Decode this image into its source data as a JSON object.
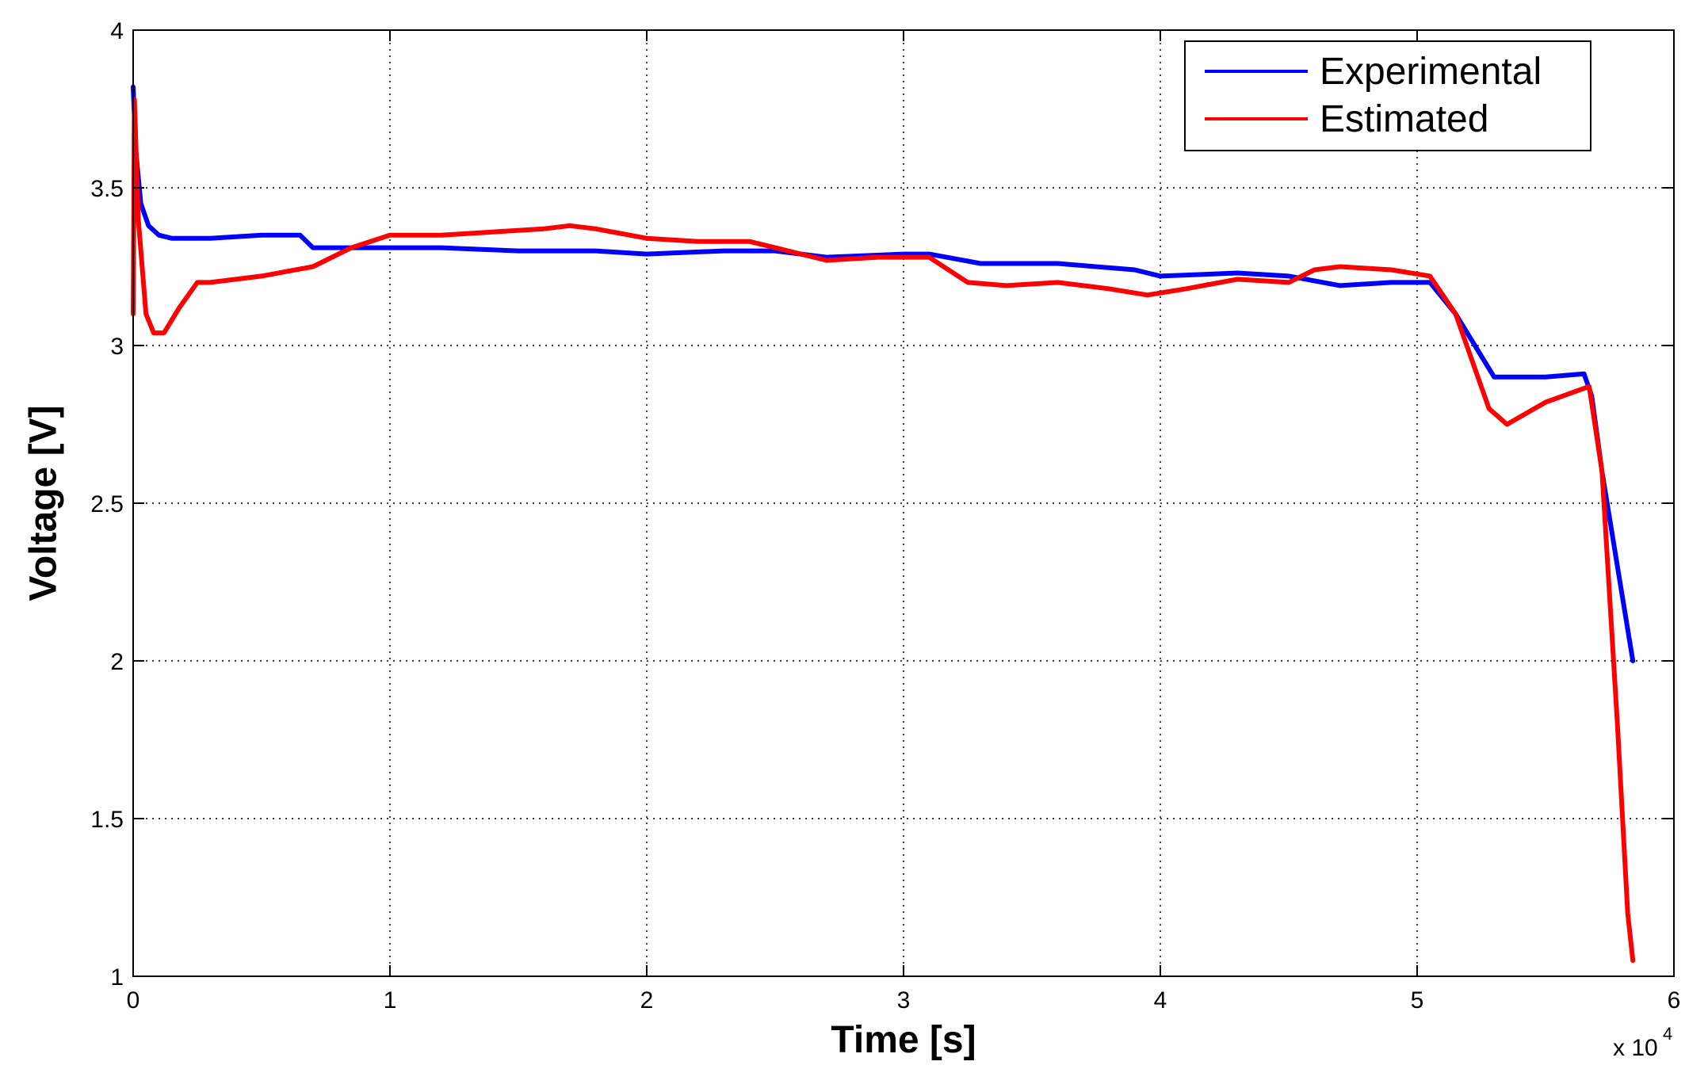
{
  "chart_data": {
    "type": "line",
    "xlabel": "Time [s]",
    "ylabel": "Voltage [V]",
    "x_exponent_label": "x 10",
    "x_exponent_power": "4",
    "xlim": [
      0,
      6
    ],
    "ylim": [
      1,
      4
    ],
    "xticks": [
      "0",
      "1",
      "2",
      "3",
      "4",
      "5",
      "6"
    ],
    "yticks": [
      "1",
      "1.5",
      "2",
      "2.5",
      "3",
      "3.5",
      "4"
    ],
    "grid": true,
    "legend_position": "top-right",
    "series": [
      {
        "name": "Experimental",
        "color": "#0000ff",
        "x": [
          0.0,
          0.01,
          0.03,
          0.06,
          0.1,
          0.15,
          0.2,
          0.3,
          0.5,
          0.65,
          0.7,
          1.0,
          1.2,
          1.5,
          1.8,
          2.0,
          2.3,
          2.5,
          2.7,
          3.0,
          3.1,
          3.3,
          3.6,
          3.9,
          4.0,
          4.3,
          4.5,
          4.7,
          4.9,
          5.0,
          5.05,
          5.15,
          5.3,
          5.5,
          5.65,
          5.68,
          5.72,
          5.78,
          5.84
        ],
        "y": [
          3.82,
          3.62,
          3.45,
          3.38,
          3.35,
          3.34,
          3.34,
          3.34,
          3.35,
          3.35,
          3.31,
          3.31,
          3.31,
          3.3,
          3.3,
          3.29,
          3.3,
          3.3,
          3.28,
          3.29,
          3.29,
          3.26,
          3.26,
          3.24,
          3.22,
          3.23,
          3.22,
          3.19,
          3.2,
          3.2,
          3.2,
          3.1,
          2.9,
          2.9,
          2.91,
          2.84,
          2.6,
          2.3,
          2.0
        ]
      },
      {
        "name": "Estimated",
        "color": "#ff0000",
        "x": [
          0.0,
          0.005,
          0.02,
          0.05,
          0.08,
          0.12,
          0.18,
          0.25,
          0.3,
          0.4,
          0.5,
          0.7,
          0.85,
          1.0,
          1.2,
          1.4,
          1.6,
          1.7,
          1.8,
          2.0,
          2.2,
          2.4,
          2.5,
          2.7,
          2.9,
          3.1,
          3.25,
          3.4,
          3.6,
          3.8,
          3.95,
          4.1,
          4.3,
          4.5,
          4.6,
          4.7,
          4.9,
          5.05,
          5.15,
          5.28,
          5.35,
          5.5,
          5.67,
          5.72,
          5.78,
          5.82,
          5.84
        ],
        "y": [
          3.1,
          3.78,
          3.4,
          3.1,
          3.04,
          3.04,
          3.12,
          3.2,
          3.2,
          3.21,
          3.22,
          3.25,
          3.31,
          3.35,
          3.35,
          3.36,
          3.37,
          3.38,
          3.37,
          3.34,
          3.33,
          3.33,
          3.31,
          3.27,
          3.28,
          3.28,
          3.2,
          3.19,
          3.2,
          3.18,
          3.16,
          3.18,
          3.21,
          3.2,
          3.24,
          3.25,
          3.24,
          3.22,
          3.1,
          2.8,
          2.75,
          2.82,
          2.87,
          2.6,
          1.8,
          1.2,
          1.05
        ]
      }
    ]
  }
}
